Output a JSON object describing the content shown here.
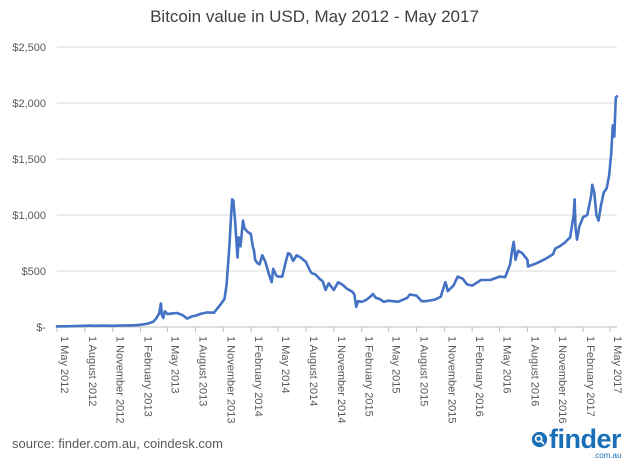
{
  "chart_data": {
    "type": "line",
    "title": "Bitcoin value in USD, May 2012 - May 2017",
    "xlabel": "",
    "ylabel": "",
    "ylim": [
      0,
      2500
    ],
    "yticks": [
      0,
      500,
      1000,
      1500,
      2000,
      2500
    ],
    "ytick_labels": [
      "$-",
      "$500",
      "$1,000",
      "$1,500",
      "$2,000",
      "$2,500"
    ],
    "xticks": [
      "2012-05-01",
      "2012-08-01",
      "2012-11-01",
      "2013-02-01",
      "2013-05-01",
      "2013-08-01",
      "2013-11-01",
      "2014-02-01",
      "2014-05-01",
      "2014-08-01",
      "2014-11-01",
      "2015-02-01",
      "2015-05-01",
      "2015-08-01",
      "2015-11-01",
      "2016-02-01",
      "2016-05-01",
      "2016-08-01",
      "2016-11-01",
      "2017-02-01",
      "2017-05-01"
    ],
    "xtick_labels": [
      "1 May 2012",
      "1 August 2012",
      "1 November 2012",
      "1 February 2013",
      "1 May 2013",
      "1 August 2013",
      "1 November 2013",
      "1 February 2014",
      "1 May 2014",
      "1 August 2014",
      "1 November 2014",
      "1 February 2015",
      "1 May 2015",
      "1 August 2015",
      "1 November 2015",
      "1 February 2016",
      "1 May 2016",
      "1 August 2016",
      "1 November 2016",
      "1 February 2017",
      "1 May 2017"
    ],
    "grid": true,
    "line_color": "#4472c4",
    "series": [
      {
        "points": [
          [
            "2012-05-01",
            5
          ],
          [
            "2012-06-01",
            6
          ],
          [
            "2012-07-01",
            8
          ],
          [
            "2012-08-01",
            11
          ],
          [
            "2012-08-20",
            13
          ],
          [
            "2012-09-01",
            11
          ],
          [
            "2012-10-01",
            12
          ],
          [
            "2012-11-01",
            11
          ],
          [
            "2012-12-01",
            13
          ],
          [
            "2013-01-01",
            14
          ],
          [
            "2013-01-20",
            17
          ],
          [
            "2013-02-01",
            20
          ],
          [
            "2013-02-20",
            28
          ],
          [
            "2013-03-01",
            34
          ],
          [
            "2013-03-15",
            47
          ],
          [
            "2013-03-25",
            78
          ],
          [
            "2013-04-03",
            120
          ],
          [
            "2013-04-09",
            210
          ],
          [
            "2013-04-12",
            110
          ],
          [
            "2013-04-17",
            80
          ],
          [
            "2013-04-22",
            140
          ],
          [
            "2013-05-01",
            115
          ],
          [
            "2013-05-20",
            122
          ],
          [
            "2013-06-01",
            125
          ],
          [
            "2013-06-20",
            105
          ],
          [
            "2013-07-05",
            75
          ],
          [
            "2013-07-20",
            95
          ],
          [
            "2013-08-01",
            100
          ],
          [
            "2013-08-20",
            120
          ],
          [
            "2013-09-10",
            130
          ],
          [
            "2013-10-01",
            128
          ],
          [
            "2013-10-20",
            190
          ],
          [
            "2013-11-05",
            250
          ],
          [
            "2013-11-12",
            380
          ],
          [
            "2013-11-18",
            600
          ],
          [
            "2013-11-22",
            750
          ],
          [
            "2013-11-25",
            900
          ],
          [
            "2013-11-30",
            1140
          ],
          [
            "2013-12-04",
            1130
          ],
          [
            "2013-12-10",
            950
          ],
          [
            "2013-12-18",
            620
          ],
          [
            "2013-12-22",
            800
          ],
          [
            "2013-12-28",
            720
          ],
          [
            "2014-01-05",
            950
          ],
          [
            "2014-01-10",
            880
          ],
          [
            "2014-01-20",
            850
          ],
          [
            "2014-01-31",
            830
          ],
          [
            "2014-02-07",
            710
          ],
          [
            "2014-02-10",
            690
          ],
          [
            "2014-02-14",
            600
          ],
          [
            "2014-02-22",
            570
          ],
          [
            "2014-03-01",
            560
          ],
          [
            "2014-03-10",
            640
          ],
          [
            "2014-03-20",
            580
          ],
          [
            "2014-04-01",
            470
          ],
          [
            "2014-04-10",
            400
          ],
          [
            "2014-04-15",
            520
          ],
          [
            "2014-04-25",
            460
          ],
          [
            "2014-05-01",
            450
          ],
          [
            "2014-05-15",
            450
          ],
          [
            "2014-05-25",
            570
          ],
          [
            "2014-06-03",
            660
          ],
          [
            "2014-06-10",
            650
          ],
          [
            "2014-06-20",
            590
          ],
          [
            "2014-07-01",
            640
          ],
          [
            "2014-07-15",
            620
          ],
          [
            "2014-08-01",
            580
          ],
          [
            "2014-08-15",
            500
          ],
          [
            "2014-08-20",
            480
          ],
          [
            "2014-09-01",
            470
          ],
          [
            "2014-09-15",
            430
          ],
          [
            "2014-09-25",
            410
          ],
          [
            "2014-10-05",
            330
          ],
          [
            "2014-10-15",
            390
          ],
          [
            "2014-11-01",
            330
          ],
          [
            "2014-11-15",
            400
          ],
          [
            "2014-12-01",
            375
          ],
          [
            "2014-12-15",
            340
          ],
          [
            "2015-01-01",
            315
          ],
          [
            "2015-01-08",
            290
          ],
          [
            "2015-01-14",
            180
          ],
          [
            "2015-01-20",
            230
          ],
          [
            "2015-02-01",
            225
          ],
          [
            "2015-02-15",
            240
          ],
          [
            "2015-03-01",
            270
          ],
          [
            "2015-03-10",
            295
          ],
          [
            "2015-03-20",
            260
          ],
          [
            "2015-04-01",
            250
          ],
          [
            "2015-04-15",
            225
          ],
          [
            "2015-05-01",
            235
          ],
          [
            "2015-06-01",
            225
          ],
          [
            "2015-07-01",
            260
          ],
          [
            "2015-07-10",
            290
          ],
          [
            "2015-08-01",
            280
          ],
          [
            "2015-08-18",
            230
          ],
          [
            "2015-09-01",
            230
          ],
          [
            "2015-10-01",
            245
          ],
          [
            "2015-10-20",
            270
          ],
          [
            "2015-11-04",
            400
          ],
          [
            "2015-11-08",
            370
          ],
          [
            "2015-11-12",
            320
          ],
          [
            "2015-12-01",
            370
          ],
          [
            "2015-12-15",
            450
          ],
          [
            "2016-01-01",
            430
          ],
          [
            "2016-01-15",
            380
          ],
          [
            "2016-02-01",
            370
          ],
          [
            "2016-03-01",
            420
          ],
          [
            "2016-04-01",
            420
          ],
          [
            "2016-05-01",
            450
          ],
          [
            "2016-05-20",
            445
          ],
          [
            "2016-06-05",
            560
          ],
          [
            "2016-06-12",
            690
          ],
          [
            "2016-06-17",
            760
          ],
          [
            "2016-06-23",
            600
          ],
          [
            "2016-07-01",
            680
          ],
          [
            "2016-07-15",
            660
          ],
          [
            "2016-08-01",
            600
          ],
          [
            "2016-08-03",
            540
          ],
          [
            "2016-09-01",
            570
          ],
          [
            "2016-10-01",
            610
          ],
          [
            "2016-10-25",
            650
          ],
          [
            "2016-11-01",
            700
          ],
          [
            "2016-11-15",
            720
          ],
          [
            "2016-12-01",
            750
          ],
          [
            "2016-12-20",
            800
          ],
          [
            "2017-01-01",
            1000
          ],
          [
            "2017-01-04",
            1140
          ],
          [
            "2017-01-07",
            890
          ],
          [
            "2017-01-12",
            780
          ],
          [
            "2017-01-20",
            900
          ],
          [
            "2017-02-01",
            980
          ],
          [
            "2017-02-15",
            1000
          ],
          [
            "2017-02-28",
            1180
          ],
          [
            "2017-03-03",
            1270
          ],
          [
            "2017-03-10",
            1200
          ],
          [
            "2017-03-17",
            1000
          ],
          [
            "2017-03-24",
            950
          ],
          [
            "2017-04-01",
            1080
          ],
          [
            "2017-04-10",
            1200
          ],
          [
            "2017-04-20",
            1240
          ],
          [
            "2017-04-28",
            1350
          ],
          [
            "2017-05-05",
            1550
          ],
          [
            "2017-05-10",
            1800
          ],
          [
            "2017-05-15",
            1700
          ],
          [
            "2017-05-20",
            2050
          ],
          [
            "2017-05-24",
            2060
          ]
        ]
      }
    ]
  },
  "footer": {
    "source": "source: finder.com.au, coindesk.com",
    "brand": "finder",
    "brand_sub": ".com.au"
  }
}
